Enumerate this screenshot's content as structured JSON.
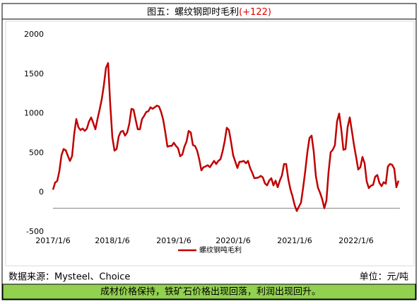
{
  "title": "图五：螺纹钢即时毛利",
  "title_change": "(+122)",
  "source": "数据来源：Mysteel、Choice",
  "unit": "单位：元/吨",
  "note": "成材价格保持，铁矿石价格出现回落，利润出现回升。",
  "chart_data": {
    "type": "line",
    "categories": [
      "2017/1/6",
      null,
      null,
      null,
      null,
      null,
      null,
      null,
      null,
      null,
      null,
      null,
      null,
      null,
      null,
      null,
      null,
      null,
      null,
      null,
      null,
      null,
      null,
      null,
      null,
      null,
      null,
      null,
      "2018/1/6",
      null,
      null,
      null,
      null,
      null,
      null,
      null,
      null,
      null,
      null,
      null,
      null,
      null,
      null,
      null,
      null,
      null,
      null,
      null,
      null,
      null,
      null,
      null,
      null,
      null,
      null,
      null,
      null,
      "2019/1/6",
      null,
      null,
      null,
      null,
      null,
      null,
      null,
      null,
      null,
      null,
      null,
      null,
      null,
      null,
      null,
      null,
      null,
      null,
      null,
      null,
      null,
      null,
      null,
      null,
      null,
      null,
      null,
      "2020/1/6",
      null,
      null,
      null,
      null,
      null,
      null,
      null,
      null,
      null,
      null,
      null,
      null,
      null,
      null,
      null,
      null,
      null,
      null,
      null,
      null,
      null,
      null,
      null,
      null,
      null,
      null,
      null,
      null,
      "2021/1/6",
      null,
      null,
      null,
      null,
      null,
      null,
      null,
      null,
      null,
      null,
      null,
      null,
      null,
      null,
      null,
      null,
      null,
      null,
      null,
      null,
      null,
      null,
      null,
      null,
      null,
      null,
      null,
      null,
      "2022/1/6",
      null,
      null,
      null,
      null,
      null,
      null,
      null,
      null,
      null,
      null,
      null,
      null,
      null,
      null,
      null,
      null,
      null,
      null,
      null,
      null
    ],
    "series": [
      {
        "name": "螺纹钢吨毛利",
        "color": "#c00000",
        "values": [
          35,
          125,
          145,
          270,
          470,
          550,
          535,
          465,
          400,
          460,
          740,
          930,
          825,
          790,
          810,
          780,
          810,
          900,
          950,
          880,
          800,
          930,
          1050,
          1180,
          1360,
          1580,
          1640,
          1120,
          700,
          530,
          550,
          710,
          770,
          780,
          720,
          760,
          870,
          1060,
          1050,
          920,
          800,
          800,
          930,
          970,
          1020,
          1030,
          1080,
          1060,
          1080,
          1100,
          1090,
          1020,
          920,
          760,
          580,
          590,
          590,
          630,
          590,
          560,
          460,
          480,
          580,
          645,
          780,
          760,
          600,
          590,
          530,
          420,
          280,
          320,
          330,
          345,
          320,
          360,
          400,
          360,
          400,
          420,
          520,
          650,
          820,
          790,
          640,
          470,
          390,
          310,
          390,
          390,
          400,
          370,
          400,
          310,
          250,
          180,
          185,
          190,
          210,
          190,
          115,
          90,
          150,
          180,
          90,
          150,
          65,
          150,
          215,
          360,
          360,
          170,
          40,
          -50,
          -160,
          -235,
          -180,
          -130,
          60,
          270,
          510,
          690,
          720,
          520,
          210,
          60,
          -5,
          -85,
          -200,
          -100,
          260,
          510,
          540,
          600,
          900,
          1000,
          800,
          540,
          550,
          830,
          950,
          780,
          600,
          450,
          290,
          320,
          450,
          370,
          140,
          55,
          85,
          95,
          200,
          220,
          120,
          80,
          130,
          110,
          330,
          360,
          350,
          300,
          65,
          150
        ]
      }
    ],
    "ylim": [
      -500,
      2000
    ],
    "yticks": [
      -500,
      0,
      500,
      1000,
      1500,
      2000
    ],
    "x_axis_value": -200,
    "legend": "bottom"
  }
}
